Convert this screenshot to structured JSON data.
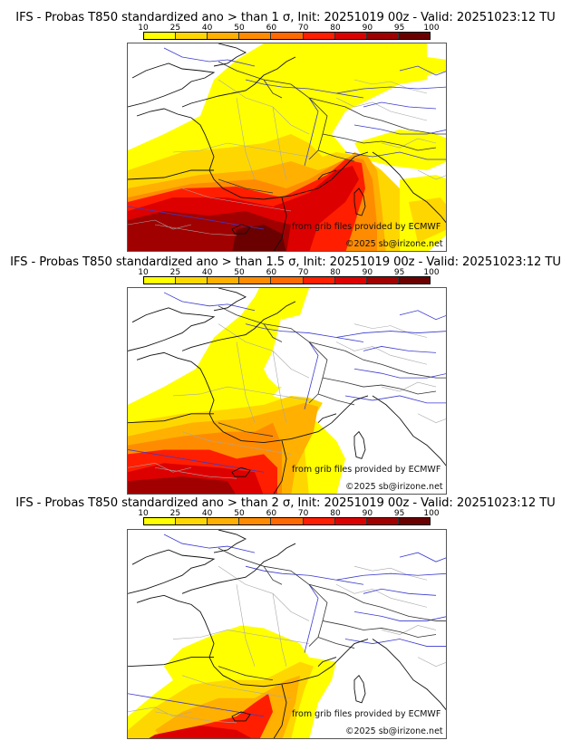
{
  "colorbar": {
    "ticks": [
      "10",
      "25",
      "40",
      "50",
      "60",
      "70",
      "80",
      "90",
      "95",
      "100"
    ],
    "colors": [
      "#ffff00",
      "#ffd700",
      "#ffb000",
      "#ff8c00",
      "#ff6a00",
      "#ff1e00",
      "#dd0000",
      "#a00000",
      "#6b0000"
    ]
  },
  "panels": [
    {
      "title": "IFS - Probas T850  standardized ano > than 1 σ, Init: 20251019 00z - Valid: 20251023:12 TU",
      "threshold_sigma": "1",
      "credit_source": "from grib files provided by ECMWF",
      "credit_copyright": "©2025 sb@irizone.net"
    },
    {
      "title": "IFS - Probas T850  standardized ano > than 1.5 σ, Init: 20251019 00z - Valid: 20251023:12 TU",
      "threshold_sigma": "1.5",
      "credit_source": "from grib files provided by ECMWF",
      "credit_copyright": "©2025 sb@irizone.net"
    },
    {
      "title": "IFS - Probas T850  standardized ano > than 2 σ, Init: 20251019 00z - Valid: 20251023:12 TU",
      "threshold_sigma": "2",
      "credit_source": "from grib files provided by ECMWF",
      "credit_copyright": "©2025 sb@irizone.net"
    }
  ]
}
